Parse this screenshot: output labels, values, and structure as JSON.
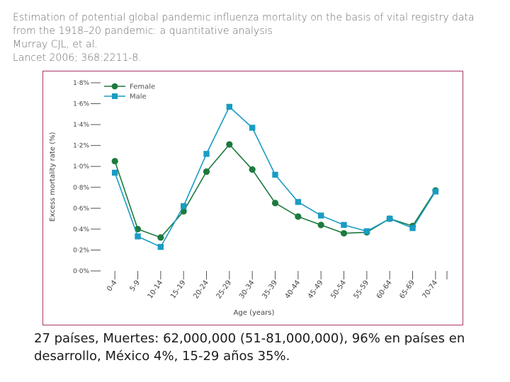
{
  "header": {
    "title_line1": "Estimation of potential global pandemic influenza mortality on the basis of vital registry data",
    "title_line2": "from the 1918–20 pandemic: a quantitative analysis",
    "authors": "Murray CJL, et al.",
    "citation": "Lancet 2006; 368:2211-8."
  },
  "caption": {
    "line1": "27 países, Muertes: 62,000,000 (51-81,000,000), 96% en países en",
    "line2": "desarrollo, México 4%, 15-29 años 35%."
  },
  "colors": {
    "female": "#1d7a3e",
    "male": "#1a9cc4",
    "axis": "#555555",
    "frame": "#a8386a"
  },
  "chart_data": {
    "type": "line",
    "title": "",
    "xlabel": "Age (years)",
    "ylabel": "Excess mortality rate (%)",
    "ylim": [
      0,
      1.8
    ],
    "yticks": [
      "0·0%",
      "0·2%",
      "0·4%",
      "0·6%",
      "0·8%",
      "1·0%",
      "1·2%",
      "1·4%",
      "1·6%",
      "1·8%"
    ],
    "categories": [
      "0-4",
      "5-9",
      "10-14",
      "15-19",
      "20-24",
      "25-29",
      "30-34",
      "35-39",
      "40-44",
      "45-49",
      "50-54",
      "55-59",
      "60-64",
      "65-69",
      "70-74"
    ],
    "series": [
      {
        "name": "Female",
        "marker": "circle",
        "values": [
          1.05,
          0.4,
          0.32,
          0.57,
          0.95,
          1.21,
          0.97,
          0.65,
          0.52,
          0.44,
          0.36,
          0.37,
          0.5,
          0.43,
          0.77
        ]
      },
      {
        "name": "Male",
        "marker": "square",
        "values": [
          0.94,
          0.33,
          0.23,
          0.62,
          1.12,
          1.57,
          1.37,
          0.92,
          0.66,
          0.53,
          0.44,
          0.38,
          0.5,
          0.41,
          0.76
        ]
      }
    ],
    "legend_position": "top-left"
  }
}
